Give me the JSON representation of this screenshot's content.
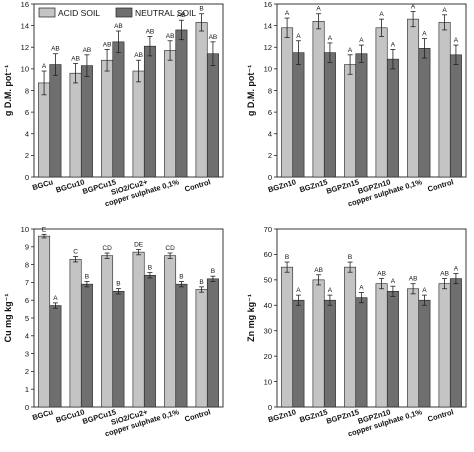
{
  "colors": {
    "acid": "#c4c4c4",
    "neutral": "#6f6f6f",
    "frame": "#222222"
  },
  "legend": {
    "acid_label": "ACID SOIL",
    "neutral_label": "NEUTRAL SOIL"
  },
  "chart_data": [
    {
      "type": "bar",
      "categories": [
        "BGCu",
        "BGCu10",
        "BGPCu15",
        "SiO2/Cu2+",
        "copper sulphate 0,1%",
        "Control"
      ],
      "series": [
        {
          "name": "ACID SOIL",
          "values": [
            8.7,
            9.6,
            10.8,
            9.8,
            11.7,
            14.3
          ],
          "errors": [
            1.1,
            0.9,
            1.0,
            1.0,
            0.9,
            0.8
          ],
          "letters": [
            "A",
            "AB",
            "AB",
            "AB",
            "AB",
            "B"
          ]
        },
        {
          "name": "NEUTRAL SOIL",
          "values": [
            10.4,
            10.3,
            12.5,
            12.1,
            13.6,
            11.4
          ],
          "errors": [
            1.0,
            1.0,
            1.0,
            0.9,
            0.9,
            1.1
          ],
          "letters": [
            "AB",
            "AB",
            "AB",
            "AB",
            "AB",
            "AB"
          ]
        }
      ],
      "ylabel": "g D.M. pot⁻¹",
      "ylim": [
        0,
        16
      ],
      "yticks": [
        0,
        2,
        4,
        6,
        8,
        10,
        12,
        14,
        16
      ],
      "legend_position": "top-left"
    },
    {
      "type": "bar",
      "categories": [
        "BGZn10",
        "BGZn15",
        "BGPZn15",
        "BGPZn10",
        "copper sulphate 0,1%",
        "Control"
      ],
      "series": [
        {
          "name": "ACID SOIL",
          "values": [
            13.8,
            14.4,
            10.4,
            13.8,
            14.6,
            14.3
          ],
          "errors": [
            0.9,
            0.7,
            0.9,
            0.8,
            0.7,
            0.7
          ],
          "letters": [
            "A",
            "A",
            "A",
            "A",
            "A",
            "A"
          ]
        },
        {
          "name": "NEUTRAL SOIL",
          "values": [
            11.5,
            11.5,
            11.4,
            10.9,
            11.9,
            11.3
          ],
          "errors": [
            1.1,
            0.9,
            0.8,
            0.9,
            0.9,
            0.9
          ],
          "letters": [
            "A",
            "A",
            "A",
            "A",
            "A",
            "A"
          ]
        }
      ],
      "ylabel": "g D.M. pot⁻¹",
      "ylim": [
        0,
        16
      ],
      "yticks": [
        0,
        2,
        4,
        6,
        8,
        10,
        12,
        14,
        16
      ]
    },
    {
      "type": "bar",
      "categories": [
        "BGCu",
        "BGCu10",
        "BGPCu15",
        "SiO2/Cu2+",
        "copper sulphate 0,1%",
        "Control"
      ],
      "series": [
        {
          "name": "ACID SOIL",
          "values": [
            9.6,
            8.3,
            8.5,
            8.7,
            8.5,
            6.6
          ],
          "errors": [
            0.1,
            0.15,
            0.15,
            0.15,
            0.15,
            0.15
          ],
          "letters": [
            "E",
            "C",
            "CD",
            "DE",
            "CD",
            "B"
          ]
        },
        {
          "name": "NEUTRAL SOIL",
          "values": [
            5.7,
            6.9,
            6.5,
            7.4,
            6.9,
            7.2
          ],
          "errors": [
            0.15,
            0.15,
            0.15,
            0.15,
            0.15,
            0.15
          ],
          "letters": [
            "A",
            "B",
            "B",
            "B",
            "B",
            "B"
          ]
        }
      ],
      "ylabel": "Cu mg kg⁻¹",
      "ylim": [
        0,
        10
      ],
      "yticks": [
        0,
        1,
        2,
        3,
        4,
        5,
        6,
        7,
        8,
        9,
        10
      ]
    },
    {
      "type": "bar",
      "categories": [
        "BGZn10",
        "BGZn15",
        "BGPZn15",
        "BGPZn10",
        "copper sulphate 0,1%",
        "Control"
      ],
      "series": [
        {
          "name": "ACID SOIL",
          "values": [
            55,
            50,
            55,
            48.5,
            46.5,
            48.5
          ],
          "errors": [
            2,
            2,
            2,
            2,
            2,
            2
          ],
          "letters": [
            "B",
            "AB",
            "B",
            "AB",
            "AB",
            "AB"
          ]
        },
        {
          "name": "NEUTRAL SOIL",
          "values": [
            42,
            42,
            43,
            45.5,
            42,
            50.5
          ],
          "errors": [
            2,
            2,
            2,
            2,
            2,
            2
          ],
          "letters": [
            "A",
            "A",
            "A",
            "A",
            "A",
            "A"
          ]
        }
      ],
      "ylabel": "Zn mg kg⁻¹",
      "ylim": [
        0,
        70
      ],
      "yticks": [
        0,
        10,
        20,
        30,
        40,
        50,
        60,
        70
      ]
    }
  ]
}
